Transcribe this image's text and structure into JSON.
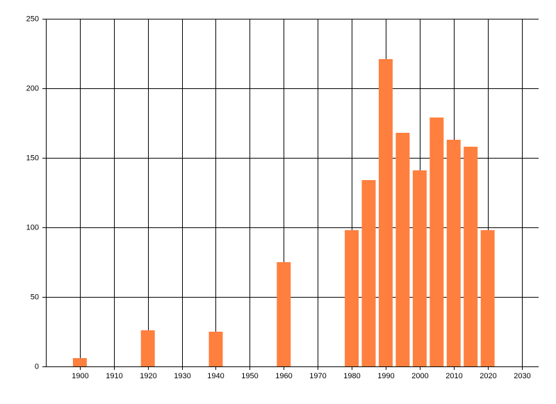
{
  "chart_data": {
    "type": "bar",
    "x": [
      1900,
      1920,
      1940,
      1960,
      1980,
      1985,
      1990,
      1995,
      2000,
      2005,
      2010,
      2015,
      2020
    ],
    "values": [
      6,
      26,
      25,
      75,
      98,
      134,
      221,
      168,
      141,
      179,
      163,
      158,
      98
    ],
    "color": "#ff7f3f",
    "xlim": [
      1890,
      2035
    ],
    "xticks": [
      1900,
      1910,
      1920,
      1930,
      1940,
      1950,
      1960,
      1970,
      1980,
      1990,
      2000,
      2010,
      2020,
      2030
    ],
    "ylim": [
      0,
      250
    ],
    "yticks": [
      0,
      50,
      100,
      150,
      200,
      250
    ],
    "grid": true
  }
}
